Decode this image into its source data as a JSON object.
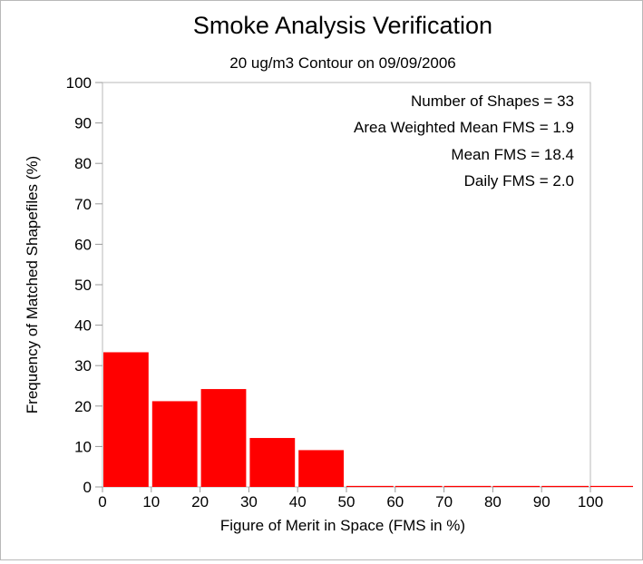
{
  "chart_data": {
    "type": "bar",
    "title": "Smoke Analysis Verification",
    "subtitle": "20 ug/m3 Contour on 09/09/2006",
    "xlabel": "Figure of Merit in Space (FMS in %)",
    "ylabel": "Frequency of Matched Shapefiles (%)",
    "xlim": [
      0,
      110
    ],
    "ylim": [
      0,
      100
    ],
    "xticks": [
      0,
      10,
      20,
      30,
      40,
      50,
      60,
      70,
      80,
      90,
      100
    ],
    "yticks": [
      0,
      10,
      20,
      30,
      40,
      50,
      60,
      70,
      80,
      90,
      100
    ],
    "bins": [
      {
        "x0": 0,
        "x1": 10,
        "value": 33.3
      },
      {
        "x0": 10,
        "x1": 20,
        "value": 21.2
      },
      {
        "x0": 20,
        "x1": 30,
        "value": 24.2
      },
      {
        "x0": 30,
        "x1": 40,
        "value": 12.1
      },
      {
        "x0": 40,
        "x1": 50,
        "value": 9.1
      },
      {
        "x0": 50,
        "x1": 60,
        "value": 0
      },
      {
        "x0": 60,
        "x1": 70,
        "value": 0
      },
      {
        "x0": 70,
        "x1": 80,
        "value": 0
      },
      {
        "x0": 80,
        "x1": 90,
        "value": 0
      },
      {
        "x0": 90,
        "x1": 100,
        "value": 0
      },
      {
        "x0": 100,
        "x1": 110,
        "value": 0
      }
    ],
    "bar_color": "#ff0000",
    "annotations": [
      "Number of Shapes = 33",
      "Area Weighted Mean FMS = 1.9",
      "Mean FMS = 18.4",
      "Daily FMS = 2.0"
    ],
    "grid": false
  }
}
